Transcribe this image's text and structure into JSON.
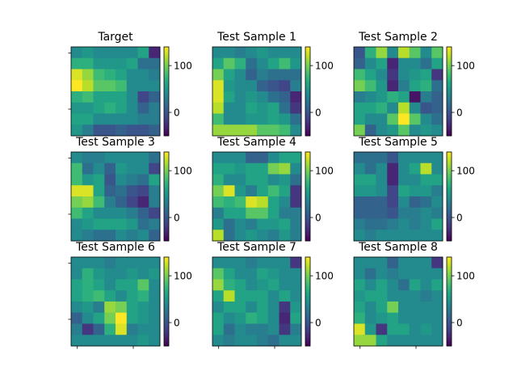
{
  "figure": {
    "colormap": "viridis",
    "colorbar_range": [
      -50,
      140
    ],
    "colorbar_ticks": [
      0,
      100
    ],
    "colorbar_tick_labels": [
      "0",
      "100"
    ]
  },
  "chart_data": [
    {
      "type": "heatmap",
      "title": "Target",
      "values": [
        [
          40,
          50,
          40,
          40,
          40,
          40,
          60,
          -30
        ],
        [
          70,
          70,
          50,
          50,
          50,
          60,
          20,
          20
        ],
        [
          130,
          110,
          80,
          70,
          60,
          40,
          40,
          30
        ],
        [
          140,
          120,
          90,
          90,
          80,
          40,
          40,
          40
        ],
        [
          70,
          80,
          60,
          60,
          60,
          40,
          -10,
          10
        ],
        [
          50,
          50,
          60,
          70,
          60,
          40,
          10,
          30
        ],
        [
          60,
          60,
          40,
          40,
          40,
          40,
          30,
          30
        ],
        [
          50,
          30,
          0,
          0,
          10,
          0,
          0,
          10
        ]
      ]
    },
    {
      "type": "heatmap",
      "title": "Test Sample 1",
      "values": [
        [
          40,
          40,
          30,
          40,
          50,
          40,
          40,
          40
        ],
        [
          60,
          90,
          70,
          20,
          40,
          60,
          80,
          50
        ],
        [
          100,
          60,
          40,
          10,
          30,
          20,
          20,
          20
        ],
        [
          130,
          50,
          40,
          40,
          10,
          0,
          -10,
          30
        ],
        [
          130,
          60,
          40,
          50,
          40,
          20,
          10,
          -30
        ],
        [
          120,
          40,
          40,
          60,
          50,
          60,
          20,
          -20
        ],
        [
          80,
          40,
          40,
          50,
          50,
          60,
          50,
          20
        ],
        [
          110,
          110,
          110,
          110,
          90,
          90,
          80,
          40
        ]
      ]
    },
    {
      "type": "heatmap",
      "title": "Test Sample 2",
      "values": [
        [
          0,
          70,
          110,
          40,
          120,
          90,
          40,
          90
        ],
        [
          10,
          40,
          60,
          -30,
          40,
          40,
          20,
          60
        ],
        [
          80,
          60,
          40,
          -20,
          40,
          50,
          60,
          -20
        ],
        [
          100,
          80,
          50,
          -30,
          30,
          60,
          70,
          20
        ],
        [
          30,
          40,
          50,
          70,
          60,
          -40,
          30,
          10
        ],
        [
          60,
          60,
          70,
          40,
          120,
          40,
          0,
          10
        ],
        [
          60,
          40,
          40,
          90,
          140,
          90,
          40,
          20
        ],
        [
          100,
          10,
          40,
          50,
          90,
          40,
          50,
          40
        ]
      ]
    },
    {
      "type": "heatmap",
      "title": "Test Sample 3",
      "values": [
        [
          40,
          30,
          30,
          40,
          40,
          40,
          40,
          20
        ],
        [
          80,
          20,
          40,
          10,
          50,
          40,
          40,
          -10
        ],
        [
          80,
          50,
          60,
          0,
          40,
          30,
          20,
          60
        ],
        [
          130,
          130,
          60,
          10,
          20,
          0,
          -10,
          30
        ],
        [
          100,
          110,
          80,
          30,
          10,
          -10,
          -30,
          30
        ],
        [
          80,
          60,
          40,
          40,
          40,
          30,
          10,
          -10
        ],
        [
          40,
          50,
          60,
          60,
          60,
          50,
          20,
          30
        ],
        [
          40,
          30,
          20,
          20,
          40,
          30,
          40,
          10
        ]
      ]
    },
    {
      "type": "heatmap",
      "title": "Test Sample 4",
      "values": [
        [
          40,
          40,
          40,
          10,
          10,
          40,
          60,
          60
        ],
        [
          60,
          60,
          50,
          60,
          60,
          100,
          110,
          40
        ],
        [
          70,
          40,
          40,
          60,
          60,
          40,
          50,
          20
        ],
        [
          100,
          130,
          50,
          30,
          60,
          80,
          60,
          -20
        ],
        [
          80,
          70,
          80,
          130,
          120,
          60,
          40,
          -20
        ],
        [
          30,
          60,
          60,
          90,
          90,
          60,
          30,
          30
        ],
        [
          50,
          20,
          40,
          30,
          50,
          50,
          60,
          30
        ],
        [
          120,
          20,
          40,
          50,
          40,
          30,
          50,
          30
        ]
      ]
    },
    {
      "type": "heatmap",
      "title": "Test Sample 5",
      "values": [
        [
          20,
          20,
          20,
          0,
          40,
          40,
          40,
          40
        ],
        [
          40,
          20,
          40,
          -30,
          40,
          60,
          120,
          40
        ],
        [
          60,
          60,
          40,
          -30,
          40,
          40,
          60,
          60
        ],
        [
          50,
          50,
          40,
          -10,
          60,
          50,
          50,
          30
        ],
        [
          10,
          10,
          10,
          -10,
          40,
          10,
          20,
          40
        ],
        [
          10,
          10,
          10,
          0,
          30,
          30,
          40,
          30
        ],
        [
          30,
          20,
          20,
          30,
          40,
          30,
          40,
          60
        ],
        [
          40,
          30,
          40,
          40,
          40,
          40,
          40,
          40
        ]
      ]
    },
    {
      "type": "heatmap",
      "title": "Test Sample 6",
      "values": [
        [
          40,
          40,
          40,
          30,
          40,
          40,
          40,
          40
        ],
        [
          40,
          70,
          50,
          40,
          40,
          50,
          40,
          50
        ],
        [
          60,
          70,
          60,
          40,
          60,
          60,
          90,
          40
        ],
        [
          60,
          70,
          80,
          60,
          40,
          60,
          70,
          40
        ],
        [
          40,
          50,
          30,
          110,
          100,
          60,
          50,
          40
        ],
        [
          10,
          40,
          60,
          100,
          140,
          60,
          50,
          40
        ],
        [
          30,
          -20,
          10,
          70,
          130,
          30,
          40,
          40
        ],
        [
          40,
          40,
          40,
          40,
          40,
          40,
          50,
          40
        ]
      ]
    },
    {
      "type": "heatmap",
      "title": "Test Sample 7",
      "values": [
        [
          40,
          40,
          40,
          30,
          40,
          40,
          40,
          -20
        ],
        [
          90,
          60,
          40,
          40,
          60,
          50,
          40,
          40
        ],
        [
          110,
          70,
          60,
          40,
          50,
          60,
          40,
          40
        ],
        [
          60,
          120,
          60,
          60,
          60,
          40,
          60,
          40
        ],
        [
          40,
          60,
          60,
          40,
          60,
          40,
          -20,
          50
        ],
        [
          60,
          40,
          50,
          70,
          60,
          40,
          -30,
          60
        ],
        [
          60,
          20,
          40,
          30,
          30,
          40,
          -20,
          30
        ],
        [
          40,
          30,
          40,
          40,
          30,
          20,
          40,
          40
        ]
      ]
    },
    {
      "type": "heatmap",
      "title": "Test Sample 8",
      "values": [
        [
          40,
          40,
          40,
          10,
          40,
          40,
          40,
          -20
        ],
        [
          40,
          20,
          40,
          30,
          40,
          40,
          40,
          40
        ],
        [
          60,
          40,
          60,
          40,
          20,
          60,
          40,
          60
        ],
        [
          50,
          60,
          60,
          40,
          40,
          40,
          30,
          40
        ],
        [
          60,
          40,
          60,
          100,
          40,
          40,
          40,
          40
        ],
        [
          70,
          40,
          50,
          60,
          40,
          40,
          40,
          40
        ],
        [
          130,
          50,
          -20,
          60,
          60,
          40,
          50,
          40
        ],
        [
          110,
          110,
          60,
          40,
          40,
          40,
          40,
          40
        ]
      ]
    }
  ]
}
